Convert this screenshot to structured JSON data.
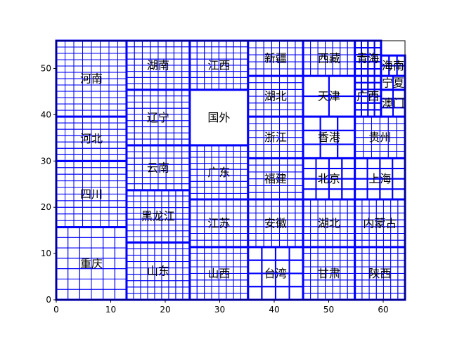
{
  "chart_data": {
    "type": "treemap",
    "xlim": [
      0,
      64
    ],
    "ylim": [
      0,
      56
    ],
    "x_ticks": [
      0,
      10,
      20,
      30,
      40,
      50,
      60
    ],
    "y_ticks": [
      0,
      10,
      20,
      30,
      40,
      50
    ],
    "grid": false,
    "border_color": "#0000ff",
    "fill_color": "#ffffff",
    "cells": [
      {
        "label": "重庆",
        "x": [
          0,
          12.9
        ],
        "y": [
          0,
          15.7
        ],
        "rows": 7,
        "cols": 6
      },
      {
        "label": "四川",
        "x": [
          0,
          12.9
        ],
        "y": [
          15.7,
          30
        ],
        "rows": 10,
        "cols": 8
      },
      {
        "label": "河北",
        "x": [
          0,
          12.9
        ],
        "y": [
          30,
          39.6
        ],
        "rows": 7,
        "cols": 8
      },
      {
        "label": "河南",
        "x": [
          0,
          12.9
        ],
        "y": [
          39.6,
          56
        ],
        "rows": 12,
        "cols": 8
      },
      {
        "label": "山东",
        "x": [
          12.9,
          24.5
        ],
        "y": [
          0,
          12.4
        ],
        "rows": 9,
        "cols": 9
      },
      {
        "label": "黑龙江",
        "x": [
          12.9,
          24.5
        ],
        "y": [
          12.4,
          23.7
        ],
        "rows": 9,
        "cols": 9
      },
      {
        "label": "云南",
        "x": [
          12.9,
          24.5
        ],
        "y": [
          23.7,
          33.4
        ],
        "rows": 7,
        "cols": 8
      },
      {
        "label": "辽宁",
        "x": [
          12.9,
          24.5
        ],
        "y": [
          33.4,
          45.4
        ],
        "rows": 9,
        "cols": 8
      },
      {
        "label": "湖南",
        "x": [
          12.9,
          24.5
        ],
        "y": [
          45.4,
          56
        ],
        "rows": 8,
        "cols": 8
      },
      {
        "label": "山西",
        "x": [
          24.5,
          35.2
        ],
        "y": [
          0,
          11.4
        ],
        "rows": 8,
        "cols": 8
      },
      {
        "label": "江苏",
        "x": [
          24.5,
          35.2
        ],
        "y": [
          11.4,
          21.7
        ],
        "rows": 7,
        "cols": 8
      },
      {
        "label": "广东",
        "x": [
          24.5,
          35.2
        ],
        "y": [
          21.7,
          33.4
        ],
        "rows": 9,
        "cols": 8
      },
      {
        "label": "国外",
        "x": [
          24.5,
          35.2
        ],
        "y": [
          33.4,
          45.4
        ],
        "rows": 1,
        "cols": 1
      },
      {
        "label": "江西",
        "x": [
          24.5,
          35.2
        ],
        "y": [
          45.4,
          56
        ],
        "rows": 8,
        "cols": 8
      },
      {
        "label": "台湾",
        "x": [
          35.2,
          45.3
        ],
        "y": [
          0,
          11.4
        ],
        "rows": 4,
        "cols": 4
      },
      {
        "label": "安徽",
        "x": [
          35.2,
          45.3
        ],
        "y": [
          11.4,
          21.7
        ],
        "rows": 7,
        "cols": 7
      },
      {
        "label": "福建",
        "x": [
          35.2,
          45.3
        ],
        "y": [
          21.7,
          30.6
        ],
        "rows": 6,
        "cols": 7
      },
      {
        "label": "浙江",
        "x": [
          35.2,
          45.3
        ],
        "y": [
          30.6,
          39.6
        ],
        "rows": 6,
        "cols": 7
      },
      {
        "label": "湖北",
        "x": [
          35.2,
          45.3
        ],
        "y": [
          39.6,
          48.4
        ],
        "rows": 6,
        "cols": 7
      },
      {
        "label": "新疆",
        "x": [
          35.2,
          45.3
        ],
        "y": [
          48.4,
          56
        ],
        "rows": 5,
        "cols": 7
      },
      {
        "label": "甘肃",
        "x": [
          45.3,
          54.8
        ],
        "y": [
          0,
          11.4
        ],
        "rows": 8,
        "cols": 7
      },
      {
        "label": "湖北",
        "x": [
          45.3,
          54.8
        ],
        "y": [
          11.4,
          21.7
        ],
        "rows": 7,
        "cols": 7
      },
      {
        "label": "北京",
        "x": [
          45.3,
          54.8
        ],
        "y": [
          21.7,
          30.6
        ],
        "rows": 4,
        "cols": 4
      },
      {
        "label": "香港",
        "x": [
          45.3,
          54.8
        ],
        "y": [
          30.6,
          39.6
        ],
        "rows": 3,
        "cols": 3
      },
      {
        "label": "天津",
        "x": [
          45.3,
          54.8
        ],
        "y": [
          39.6,
          48.4
        ],
        "rows": 2,
        "cols": 2
      },
      {
        "label": "西藏",
        "x": [
          45.3,
          54.8
        ],
        "y": [
          48.4,
          56
        ],
        "rows": 5,
        "cols": 7
      },
      {
        "label": "陕西",
        "x": [
          54.8,
          64
        ],
        "y": [
          0,
          11.4
        ],
        "rows": 8,
        "cols": 7
      },
      {
        "label": "内蒙古",
        "x": [
          54.8,
          64
        ],
        "y": [
          11.4,
          21.7
        ],
        "rows": 7,
        "cols": 7
      },
      {
        "label": "上海",
        "x": [
          54.8,
          64
        ],
        "y": [
          21.7,
          30.6
        ],
        "rows": 4,
        "cols": 4
      },
      {
        "label": "贵州",
        "x": [
          54.8,
          64
        ],
        "y": [
          30.6,
          39.6
        ],
        "rows": 6,
        "cols": 6
      },
      {
        "label": "广西",
        "x": [
          54.8,
          59.6
        ],
        "y": [
          39.6,
          48.4
        ],
        "rows": 6,
        "cols": 4
      },
      {
        "label": "澳门",
        "x": [
          59.6,
          64
        ],
        "y": [
          39.6,
          45.4
        ],
        "rows": 3,
        "cols": 2
      },
      {
        "label": "宁夏",
        "x": [
          59.6,
          64
        ],
        "y": [
          45.4,
          48.4
        ],
        "rows": 1,
        "cols": 2
      },
      {
        "label": "青海",
        "x": [
          54.8,
          59.6
        ],
        "y": [
          48.4,
          56
        ],
        "rows": 5,
        "cols": 4
      },
      {
        "label": "海南",
        "x": [
          59.6,
          64
        ],
        "y": [
          48.4,
          52.8
        ],
        "rows": 2,
        "cols": 3
      }
    ]
  }
}
